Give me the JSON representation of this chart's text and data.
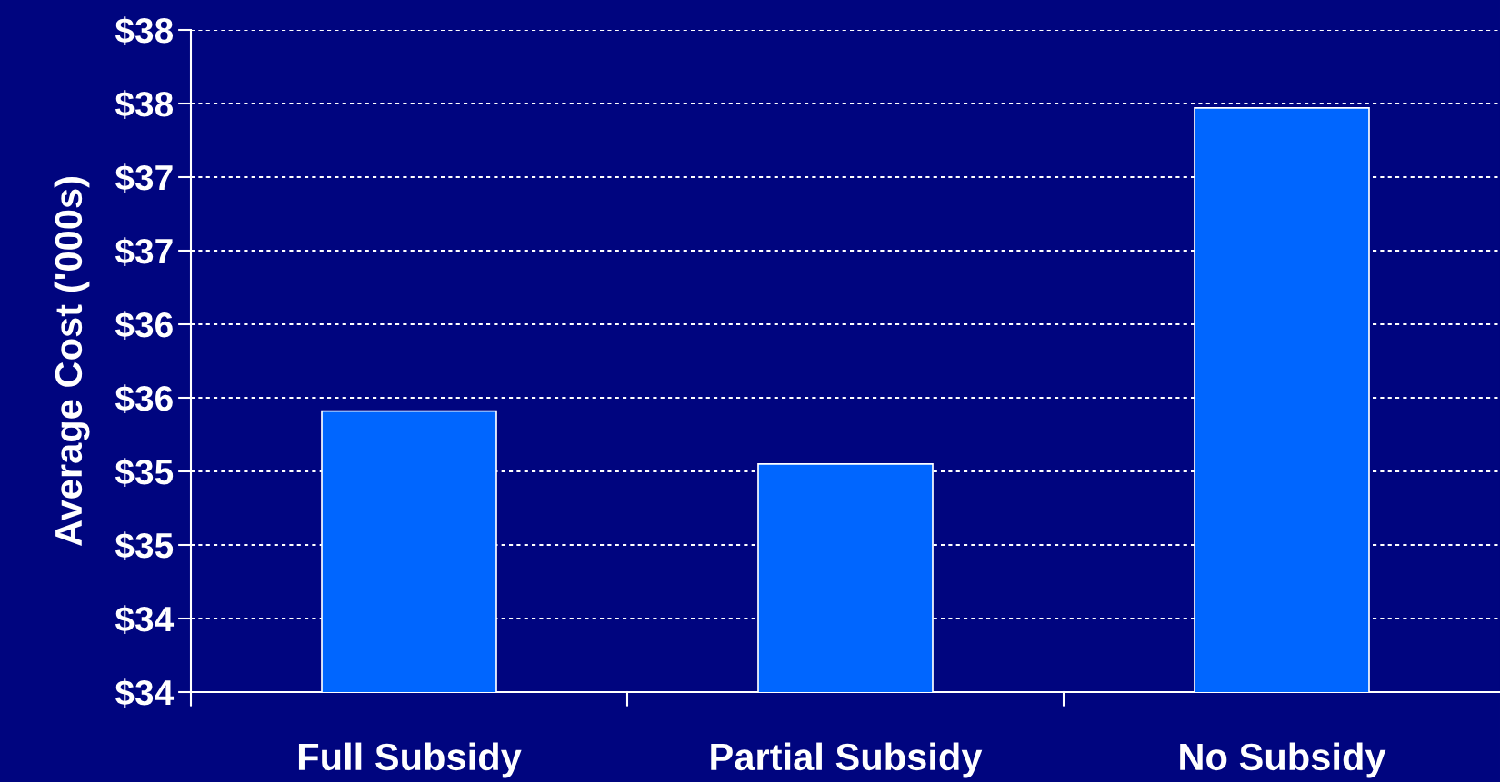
{
  "chart_data": {
    "type": "bar",
    "ylabel": "Average Cost ('000s)",
    "categories": [
      "Full Subsidy",
      "Partial Subsidy",
      "No Subsidy"
    ],
    "values": [
      35.41,
      35.05,
      37.47
    ],
    "color": "#0066ff",
    "ylim": [
      33.5,
      38.0
    ],
    "yticks": [
      {
        "value": 33.5,
        "label": "$34"
      },
      {
        "value": 34.0,
        "label": "$34"
      },
      {
        "value": 34.5,
        "label": "$35"
      },
      {
        "value": 35.0,
        "label": "$35"
      },
      {
        "value": 35.5,
        "label": "$36"
      },
      {
        "value": 36.0,
        "label": "$36"
      },
      {
        "value": 36.5,
        "label": "$37"
      },
      {
        "value": 37.0,
        "label": "$37"
      },
      {
        "value": 37.5,
        "label": "$38"
      },
      {
        "value": 38.0,
        "label": "$38"
      }
    ],
    "grid": "y"
  }
}
